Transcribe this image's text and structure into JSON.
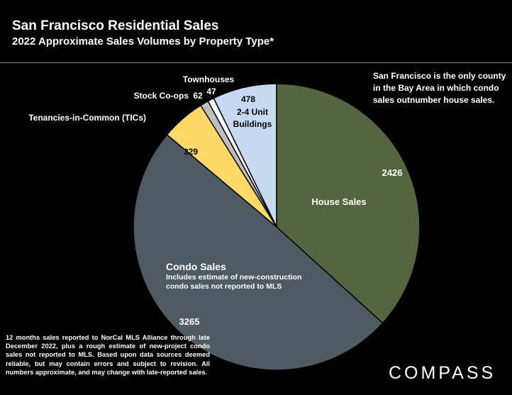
{
  "title": "San Francisco Residential Sales",
  "subtitle": "2022 Approximate Sales Volumes by Property Type*",
  "side_note": "San Francisco is the only county in the Bay Area in which condo sales outnumber house sales.",
  "footnote": "12 months sales reported to NorCal MLS Alliance through late December 2022, plus a rough estimate of new-project condo sales not reported to MLS. Based upon data sources deemed reliable, but may contain errors and subject to revision. All numbers approximate, and may change with late-reported sales.",
  "brand": "COMPASS",
  "chart_data": {
    "type": "pie",
    "title": "San Francisco Residential Sales",
    "subtitle": "2022 Approximate Sales Volumes by Property Type*",
    "slices": [
      {
        "label": "House Sales",
        "value": 2426,
        "color": "#54663f"
      },
      {
        "label": "Condo Sales",
        "sublabel": "Includes estimate of new-construction condo sales not reported to MLS",
        "value": 3265,
        "color": "#4e5b63"
      },
      {
        "label": "Tenancies-in-Common (TICs)",
        "value": 329,
        "color": "#ffd966"
      },
      {
        "label": "Stock Co-ops",
        "value": 62,
        "color": "#bfbfbf"
      },
      {
        "label": "Townhouses",
        "value": 47,
        "color": "#ffffff"
      },
      {
        "label": "2-4 Unit Buildings",
        "value": 478,
        "color": "#c5d9f1"
      }
    ]
  }
}
